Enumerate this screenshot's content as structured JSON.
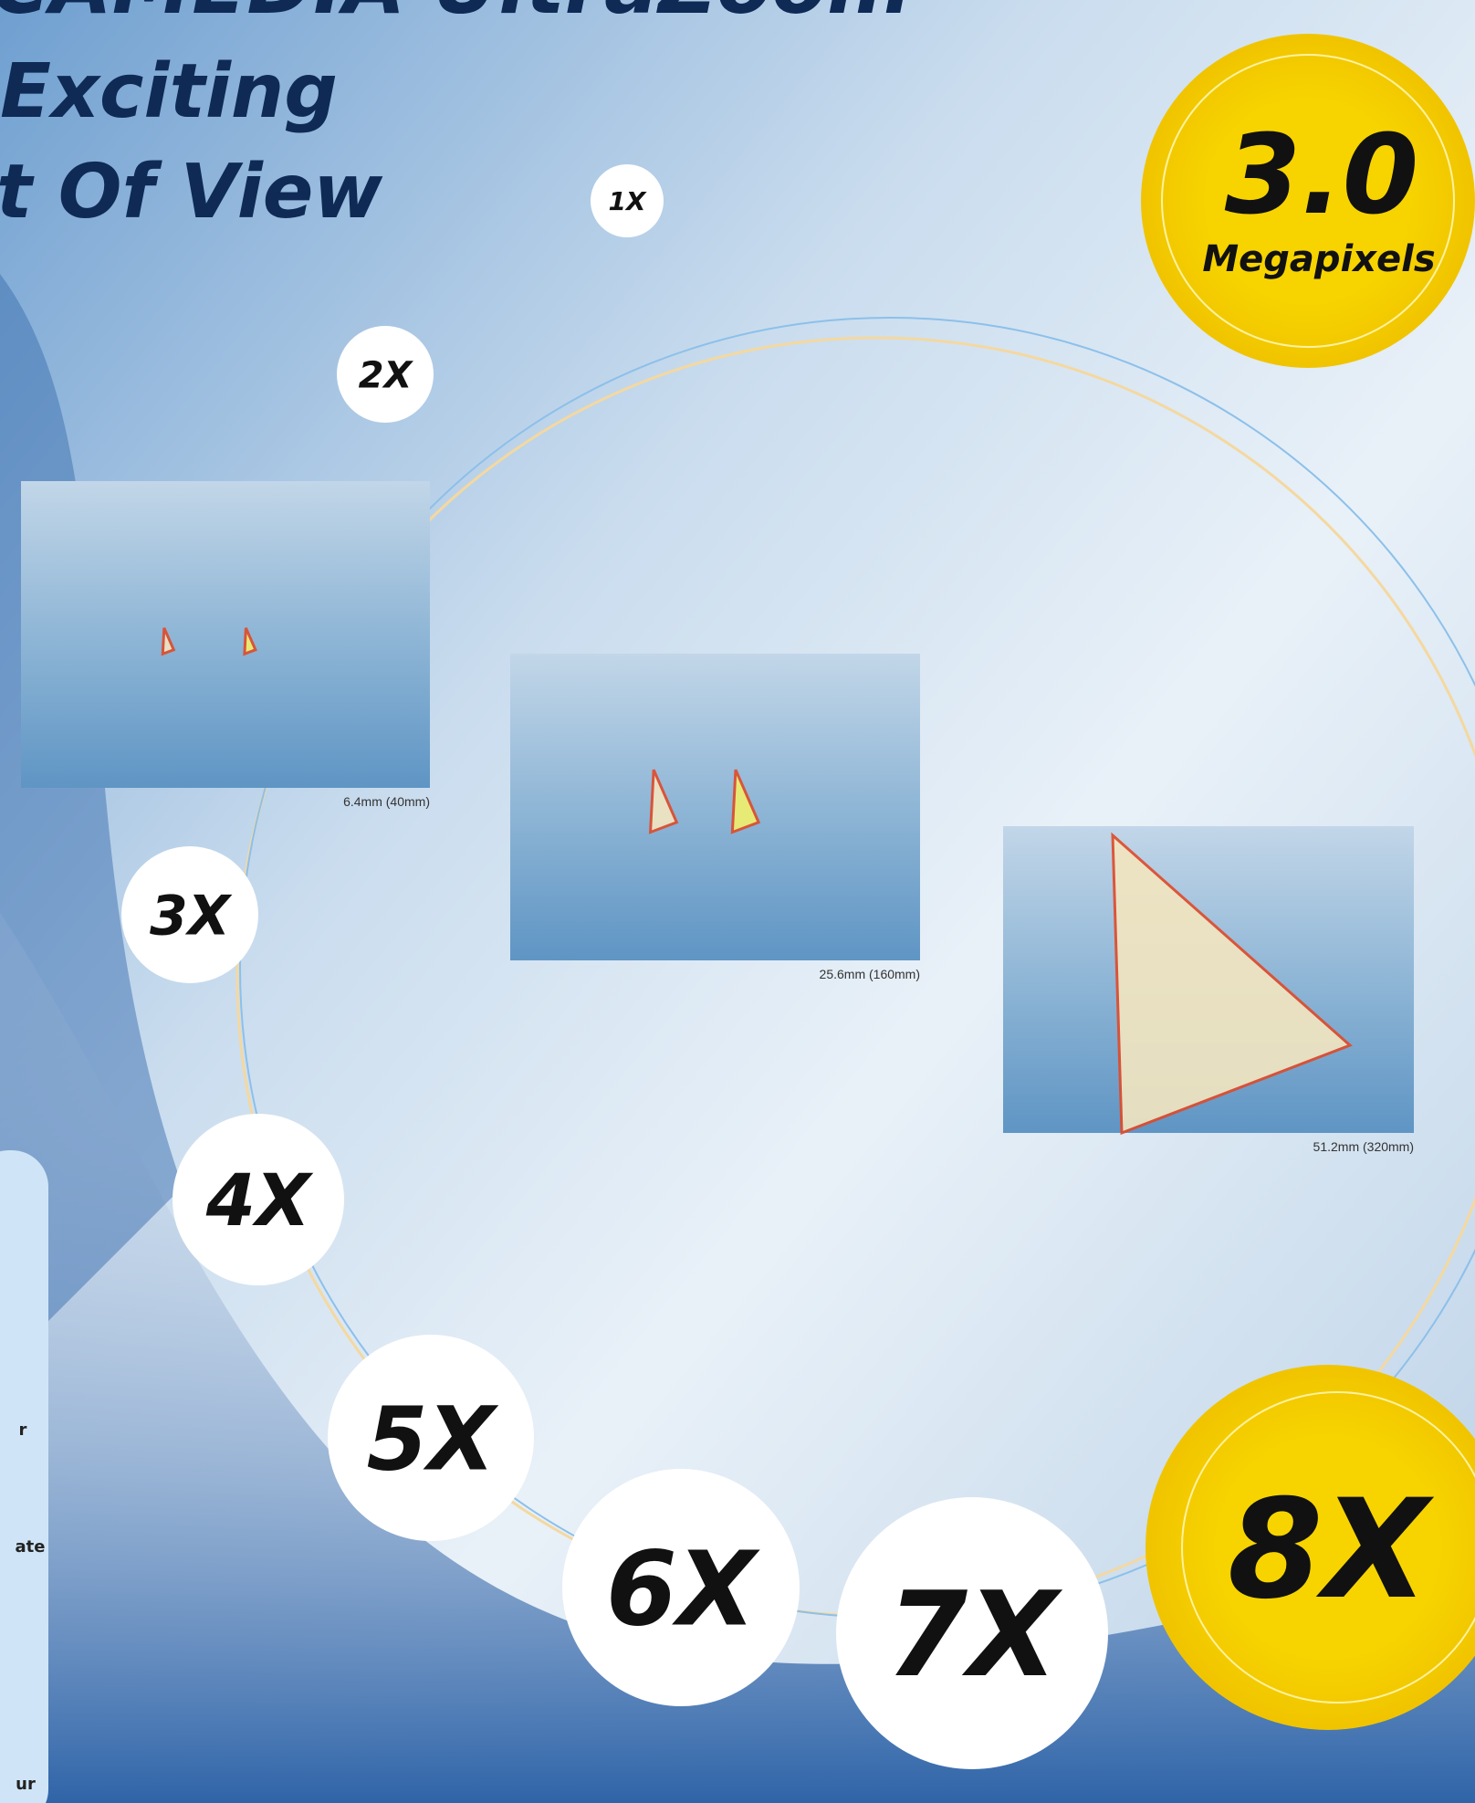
{
  "header": {
    "title_lines": [
      "CAMEDIA UltraZoom",
      "Exciting",
      "t Of View"
    ]
  },
  "badge": {
    "value": "3.0",
    "label": "Megapixels"
  },
  "zoom_levels": [
    "1X",
    "2X",
    "3X",
    "4X",
    "5X",
    "6X",
    "7X",
    "8X"
  ],
  "photos": [
    {
      "caption": "6.4mm (40mm)"
    },
    {
      "caption": "25.6mm (160mm)"
    },
    {
      "caption": "51.2mm (320mm)"
    }
  ],
  "side_panel": {
    "fragments": [
      "r",
      "ate",
      "ur"
    ]
  }
}
